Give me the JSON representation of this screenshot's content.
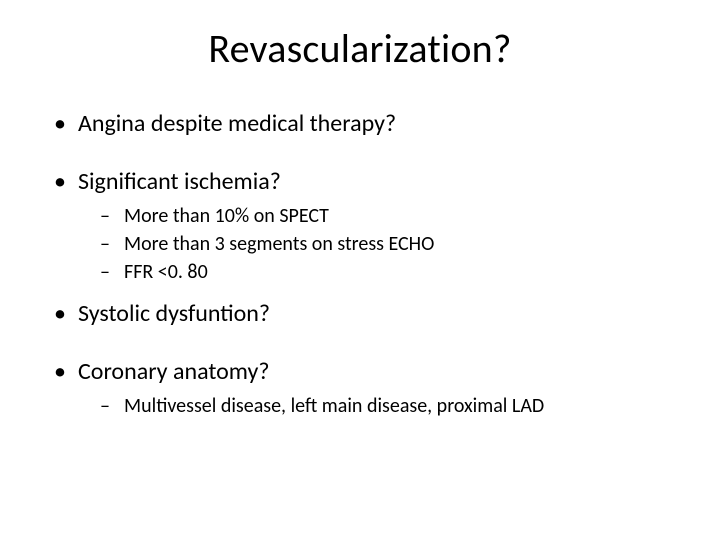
{
  "slide": {
    "title": "Revascularization?",
    "bullets": [
      {
        "text": "Angina despite medical therapy?",
        "sub": []
      },
      {
        "text": "Significant ischemia?",
        "sub": [
          "More than 10% on SPECT",
          "More than 3 segments on stress ECHO",
          "FFR <0. 80"
        ]
      },
      {
        "text": "Systolic dysfuntion?",
        "sub": []
      },
      {
        "text": "Coronary anatomy?",
        "sub": [
          "Multivessel disease, left main disease, proximal LAD"
        ]
      }
    ]
  },
  "style": {
    "background_color": "#ffffff",
    "text_color": "#000000",
    "title_fontsize_pt": 40,
    "level1_fontsize_pt": 24,
    "level2_fontsize_pt": 20,
    "font_family": "Calibri"
  }
}
